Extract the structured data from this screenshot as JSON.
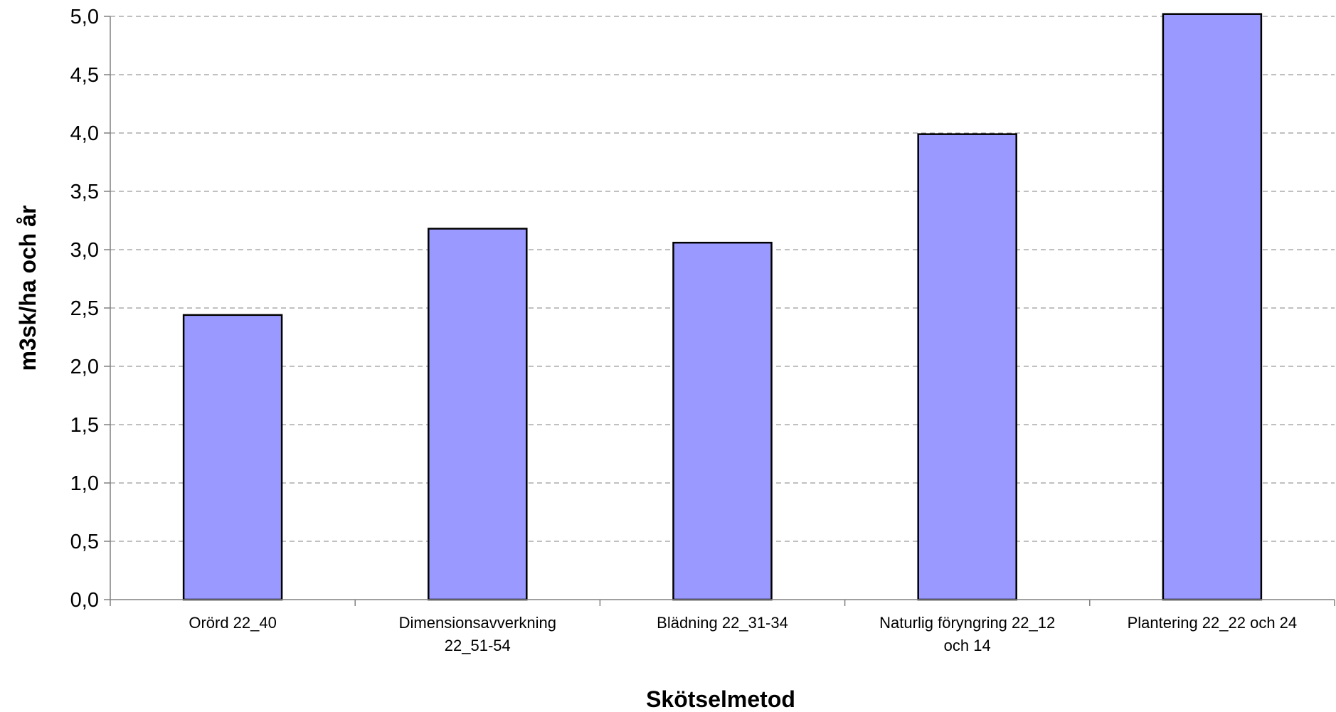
{
  "chart_data": {
    "type": "bar",
    "categories": [
      [
        "Orörd 22_40"
      ],
      [
        "Dimensionsavverkning",
        "22_51-54"
      ],
      [
        "Blädning 22_31-34"
      ],
      [
        "Naturlig föryngring 22_12",
        "och 14"
      ],
      [
        "Plantering 22_22 och 24"
      ]
    ],
    "values": [
      2.44,
      3.18,
      3.06,
      3.99,
      5.02
    ],
    "xlabel": "Skötselmetod",
    "ylabel": "m3sk/ha och år",
    "ylim": [
      0,
      5
    ],
    "yticks": [
      0,
      0.5,
      1,
      1.5,
      2,
      2.5,
      3,
      3.5,
      4,
      4.5,
      5
    ],
    "ytick_labels": [
      "0,0",
      "0,5",
      "1,0",
      "1,5",
      "2,0",
      "2,5",
      "3,0",
      "3,5",
      "4,0",
      "4,5",
      "5,0"
    ],
    "grid": true,
    "legend": "none",
    "bar_color": "#9999ff",
    "bar_edge_color": "#000000"
  }
}
